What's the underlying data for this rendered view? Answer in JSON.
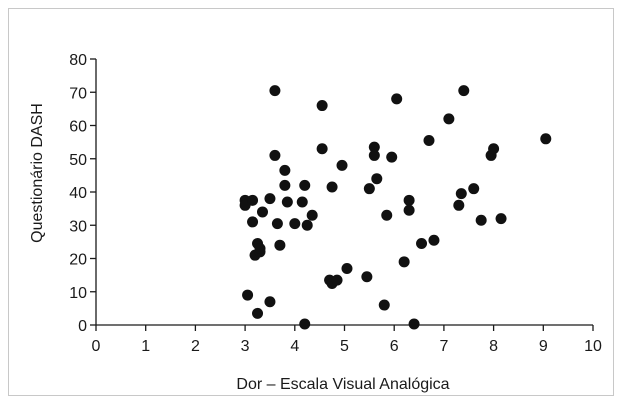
{
  "chart_data": {
    "type": "scatter",
    "title": "",
    "xlabel": "Dor – Escala Visual Analógica",
    "ylabel": "Questionário DASH",
    "xlim": [
      0,
      10
    ],
    "ylim": [
      0,
      80
    ],
    "x_ticks": [
      0,
      1,
      2,
      3,
      4,
      5,
      6,
      7,
      8,
      9,
      10
    ],
    "y_ticks": [
      0,
      10,
      20,
      30,
      40,
      50,
      60,
      70,
      80
    ],
    "grid": false,
    "legend": "none",
    "marker_color": "#111111",
    "points": [
      {
        "x": 3.0,
        "y": 37.5
      },
      {
        "x": 3.0,
        "y": 36.0
      },
      {
        "x": 3.15,
        "y": 37.5
      },
      {
        "x": 3.15,
        "y": 31.0
      },
      {
        "x": 3.2,
        "y": 21.0
      },
      {
        "x": 3.25,
        "y": 24.5
      },
      {
        "x": 3.3,
        "y": 22.0
      },
      {
        "x": 3.35,
        "y": 34.0
      },
      {
        "x": 3.3,
        "y": 23.0
      },
      {
        "x": 3.05,
        "y": 9.0
      },
      {
        "x": 3.25,
        "y": 3.5
      },
      {
        "x": 3.5,
        "y": 7.0
      },
      {
        "x": 3.5,
        "y": 38.0
      },
      {
        "x": 3.6,
        "y": 51.0
      },
      {
        "x": 3.6,
        "y": 70.5
      },
      {
        "x": 3.65,
        "y": 30.5
      },
      {
        "x": 3.7,
        "y": 24.0
      },
      {
        "x": 3.8,
        "y": 46.5
      },
      {
        "x": 3.8,
        "y": 42.0
      },
      {
        "x": 3.85,
        "y": 37.0
      },
      {
        "x": 4.0,
        "y": 30.5
      },
      {
        "x": 4.15,
        "y": 37.0
      },
      {
        "x": 4.2,
        "y": 42.0
      },
      {
        "x": 4.25,
        "y": 30.0
      },
      {
        "x": 4.35,
        "y": 33.0
      },
      {
        "x": 4.2,
        "y": 0.3
      },
      {
        "x": 4.55,
        "y": 66.0
      },
      {
        "x": 4.55,
        "y": 53.0
      },
      {
        "x": 4.75,
        "y": 41.5
      },
      {
        "x": 4.7,
        "y": 13.5
      },
      {
        "x": 4.75,
        "y": 12.5
      },
      {
        "x": 4.85,
        "y": 13.5
      },
      {
        "x": 4.95,
        "y": 48.0
      },
      {
        "x": 5.05,
        "y": 17.0
      },
      {
        "x": 5.45,
        "y": 14.5
      },
      {
        "x": 5.5,
        "y": 41.0
      },
      {
        "x": 5.6,
        "y": 53.5
      },
      {
        "x": 5.6,
        "y": 51.0
      },
      {
        "x": 5.65,
        "y": 44.0
      },
      {
        "x": 5.8,
        "y": 6.0
      },
      {
        "x": 5.85,
        "y": 33.0
      },
      {
        "x": 5.95,
        "y": 50.5
      },
      {
        "x": 6.05,
        "y": 68.0
      },
      {
        "x": 6.2,
        "y": 19.0
      },
      {
        "x": 6.3,
        "y": 37.5
      },
      {
        "x": 6.3,
        "y": 34.5
      },
      {
        "x": 6.4,
        "y": 0.3
      },
      {
        "x": 6.55,
        "y": 24.5
      },
      {
        "x": 6.7,
        "y": 55.5
      },
      {
        "x": 6.8,
        "y": 25.5
      },
      {
        "x": 7.1,
        "y": 62.0
      },
      {
        "x": 7.3,
        "y": 36.0
      },
      {
        "x": 7.35,
        "y": 39.5
      },
      {
        "x": 7.4,
        "y": 70.5
      },
      {
        "x": 7.6,
        "y": 41.0
      },
      {
        "x": 7.75,
        "y": 31.5
      },
      {
        "x": 7.95,
        "y": 51.0
      },
      {
        "x": 8.0,
        "y": 53.0
      },
      {
        "x": 8.15,
        "y": 32.0
      },
      {
        "x": 9.05,
        "y": 56.0
      }
    ]
  }
}
